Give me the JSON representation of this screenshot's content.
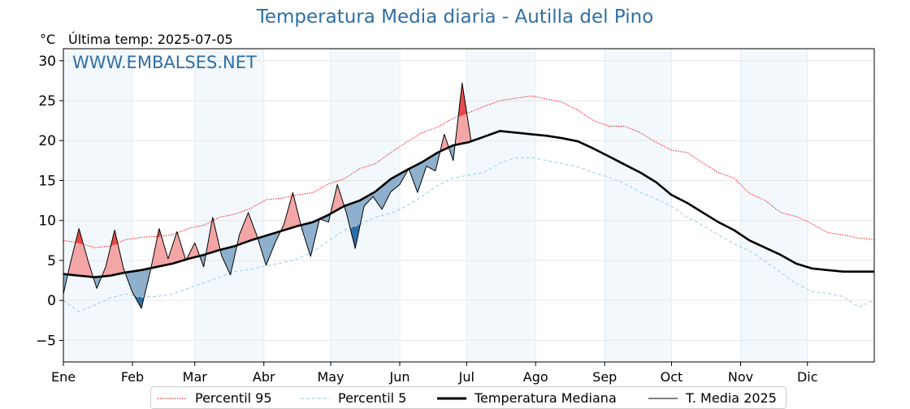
{
  "header": {
    "title": "Temperatura Media diaria - Autilla del Pino",
    "unit": "°C",
    "last_temp": "Última temp: 2025-07-05"
  },
  "watermark": "WWW.EMBALSES.NET",
  "legend": [
    {
      "label": "Percentil 95",
      "color": "#ff0000",
      "style": "dotted"
    },
    {
      "label": "Percentil 5",
      "color": "#a8d4e6",
      "style": "dashed"
    },
    {
      "label": "Temperatura Mediana",
      "color": "#000000",
      "style": "solid-thick"
    },
    {
      "label": "T. Media 2025",
      "color": "#000000",
      "style": "solid-thin"
    }
  ],
  "chart_data": {
    "type": "line",
    "title": "Temperatura Media diaria - Autilla del Pino",
    "xlabel": "",
    "ylabel": "°C",
    "x_months": [
      "Ene",
      "Feb",
      "Mar",
      "Abr",
      "May",
      "Jun",
      "Jul",
      "Ago",
      "Sep",
      "Oct",
      "Nov",
      "Dic"
    ],
    "y_ticks": [
      -5,
      0,
      5,
      10,
      15,
      20,
      25,
      30
    ],
    "ylim": [
      -7.7,
      31.5
    ],
    "xlim_days": [
      1,
      365
    ],
    "grid": true,
    "legend_position": "bottom",
    "shaded_month_bands": [
      "Ene",
      "Mar",
      "May",
      "Jul",
      "Sep",
      "Nov"
    ],
    "fill_above_color": "#f4a6a6",
    "fill_above_peak_color": "#e84a4a",
    "fill_below_color": "#8fb0cc",
    "fill_below_peak_color": "#2f6da8",
    "series": [
      {
        "name": "Percentil 95",
        "color": "#ff0000",
        "x": [
          1,
          8,
          15,
          22,
          29,
          36,
          43,
          50,
          57,
          64,
          71,
          78,
          85,
          92,
          99,
          106,
          113,
          120,
          127,
          134,
          141,
          148,
          155,
          162,
          169,
          176,
          183,
          190,
          197,
          204,
          211,
          218,
          225,
          232,
          239,
          246,
          253,
          260,
          267,
          274,
          281,
          288,
          295,
          302,
          309,
          316,
          323,
          330,
          337,
          344,
          351,
          358,
          365
        ],
        "values": [
          7.5,
          7.2,
          6.6,
          6.8,
          7.6,
          7.9,
          8.0,
          8.2,
          9.0,
          9.4,
          10.4,
          10.8,
          11.5,
          12.6,
          12.8,
          13.2,
          13.5,
          14.6,
          15.2,
          16.5,
          17.1,
          18.5,
          19.8,
          21.0,
          21.7,
          22.8,
          23.5,
          24.3,
          25.0,
          25.3,
          25.6,
          25.2,
          24.8,
          23.8,
          22.5,
          21.8,
          21.8,
          21.0,
          19.8,
          18.8,
          18.5,
          17.2,
          16.0,
          15.3,
          13.4,
          12.5,
          11.0,
          10.5,
          9.6,
          8.5,
          8.2,
          7.8,
          7.6
        ]
      },
      {
        "name": "Percentil 5",
        "color": "#a8d4e6",
        "x": [
          1,
          8,
          15,
          22,
          29,
          36,
          43,
          50,
          57,
          64,
          71,
          78,
          85,
          92,
          99,
          106,
          113,
          120,
          127,
          134,
          141,
          148,
          155,
          162,
          169,
          176,
          183,
          190,
          197,
          204,
          211,
          218,
          225,
          232,
          239,
          246,
          253,
          260,
          267,
          274,
          281,
          288,
          295,
          302,
          309,
          316,
          323,
          330,
          337,
          344,
          351,
          358,
          365
        ],
        "values": [
          0.0,
          -1.4,
          -0.6,
          0.3,
          0.8,
          0.4,
          0.5,
          0.8,
          1.5,
          2.2,
          2.9,
          3.6,
          3.9,
          4.3,
          4.7,
          5.2,
          6.1,
          7.4,
          8.8,
          9.5,
          10.4,
          10.9,
          11.8,
          13.0,
          14.4,
          15.3,
          15.7,
          16.0,
          17.2,
          17.8,
          17.9,
          17.5,
          17.1,
          16.7,
          16.0,
          15.4,
          14.6,
          13.5,
          12.7,
          11.8,
          10.4,
          9.4,
          8.2,
          7.1,
          6.2,
          4.9,
          3.5,
          2.1,
          1.1,
          0.9,
          0.5,
          -0.8,
          0.0
        ]
      },
      {
        "name": "Temperatura Mediana",
        "color": "#000000",
        "x": [
          1,
          8,
          15,
          22,
          29,
          36,
          43,
          50,
          57,
          64,
          71,
          78,
          85,
          92,
          99,
          106,
          113,
          120,
          127,
          134,
          141,
          148,
          155,
          162,
          169,
          176,
          183,
          190,
          197,
          204,
          211,
          218,
          225,
          232,
          239,
          246,
          253,
          260,
          267,
          274,
          281,
          288,
          295,
          302,
          309,
          316,
          323,
          330,
          337,
          344,
          351,
          358,
          365
        ],
        "values": [
          3.3,
          3.1,
          2.9,
          3.1,
          3.5,
          3.8,
          4.2,
          4.6,
          5.2,
          5.7,
          6.3,
          6.8,
          7.5,
          8.1,
          8.7,
          9.3,
          9.8,
          10.7,
          11.8,
          12.5,
          13.6,
          15.2,
          16.3,
          17.3,
          18.5,
          19.4,
          19.8,
          20.5,
          21.2,
          21.0,
          20.8,
          20.6,
          20.3,
          19.9,
          19.0,
          18.0,
          17.0,
          16.0,
          14.8,
          13.2,
          12.2,
          11.0,
          9.8,
          8.8,
          7.5,
          6.6,
          5.7,
          4.6,
          4.0,
          3.8,
          3.6,
          3.6,
          3.6
        ]
      },
      {
        "name": "T. Media 2025",
        "color": "#000000",
        "x": [
          1,
          4,
          8,
          12,
          16,
          20,
          24,
          28,
          32,
          36,
          40,
          44,
          48,
          52,
          56,
          60,
          64,
          68,
          72,
          76,
          80,
          84,
          88,
          92,
          96,
          100,
          104,
          108,
          112,
          116,
          120,
          124,
          128,
          132,
          136,
          140,
          144,
          148,
          152,
          156,
          160,
          164,
          168,
          172,
          176,
          180,
          184,
          186
        ],
        "values": [
          0.8,
          4.5,
          9.0,
          5.0,
          1.5,
          4.2,
          8.8,
          4.0,
          1.0,
          -1.0,
          3.6,
          9.0,
          5.2,
          8.6,
          5.0,
          7.2,
          4.2,
          10.4,
          5.6,
          3.2,
          8.2,
          11.0,
          8.0,
          4.4,
          7.2,
          9.5,
          13.5,
          9.0,
          5.5,
          10.2,
          9.8,
          14.5,
          11.0,
          6.5,
          11.8,
          13.0,
          11.4,
          13.6,
          14.5,
          16.5,
          13.5,
          16.8,
          16.2,
          20.8,
          17.5,
          27.2,
          20.0,
          20.2
        ]
      }
    ]
  }
}
